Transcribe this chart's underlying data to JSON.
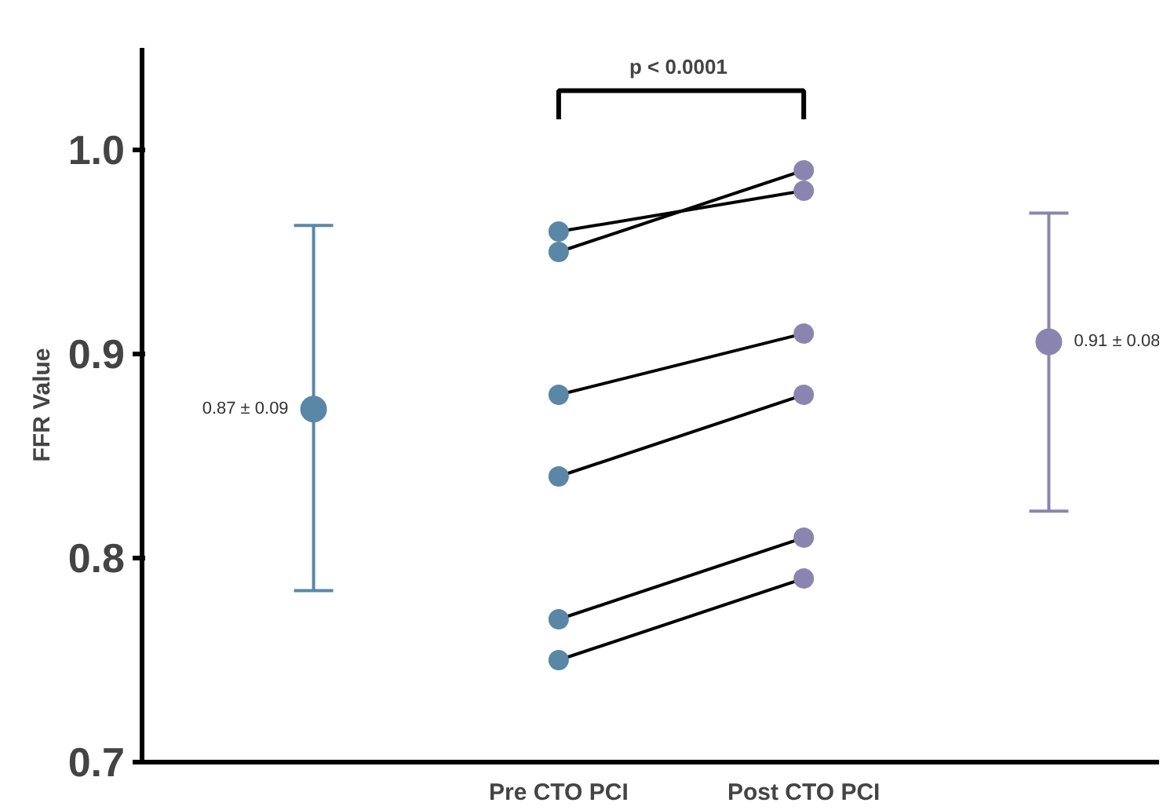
{
  "chart_data": {
    "type": "line",
    "ylabel": "FFR Value",
    "categories": [
      null,
      "Pre CTO PCI",
      "Post CTO PCI",
      null
    ],
    "ylim": [
      0.7,
      1.05
    ],
    "yticks": [
      0.7,
      0.8,
      0.9,
      {
        "value": 1.0,
        "label": "1.0"
      }
    ],
    "grid": false,
    "marker": "circle",
    "annotations": [
      "p  < 0.0001"
    ],
    "series": [
      {
        "color": "#000000",
        "colors": [
          null,
          "#5b87a6",
          "#8a85b0",
          null
        ],
        "values": [
          null,
          0.96,
          0.98,
          null
        ]
      },
      {
        "color": "#000000",
        "colors": [
          null,
          "#5b87a6",
          "#8a85b0",
          null
        ],
        "values": [
          null,
          0.95,
          0.99,
          null
        ]
      },
      {
        "color": "#000000",
        "colors": [
          null,
          "#5b87a6",
          "#8a85b0",
          null
        ],
        "values": [
          null,
          0.88,
          0.91,
          null
        ]
      },
      {
        "color": "#000000",
        "colors": [
          null,
          "#5b87a6",
          "#8a85b0",
          null
        ],
        "values": [
          null,
          0.84,
          0.88,
          null
        ]
      },
      {
        "color": "#000000",
        "colors": [
          null,
          "#5b87a6",
          "#8a85b0",
          null
        ],
        "values": [
          null,
          0.77,
          0.81,
          null
        ]
      },
      {
        "color": "#000000",
        "colors": [
          null,
          "#5b87a6",
          "#8a85b0",
          null
        ],
        "values": [
          null,
          0.75,
          0.79,
          null
        ]
      },
      {
        "type": "scatter",
        "colors": [
          "#5b87a6",
          null,
          null,
          "#8a85b0"
        ],
        "values": [
          0.873,
          null,
          null,
          0.906
        ],
        "errors": [
          [
            0.784,
            0.963
          ],
          null,
          null,
          [
            0.823,
            0.969
          ]
        ],
        "value_labels": [
          "0.87 ± 0.09",
          null,
          null,
          "0.91 ± 0.08"
        ]
      }
    ]
  }
}
